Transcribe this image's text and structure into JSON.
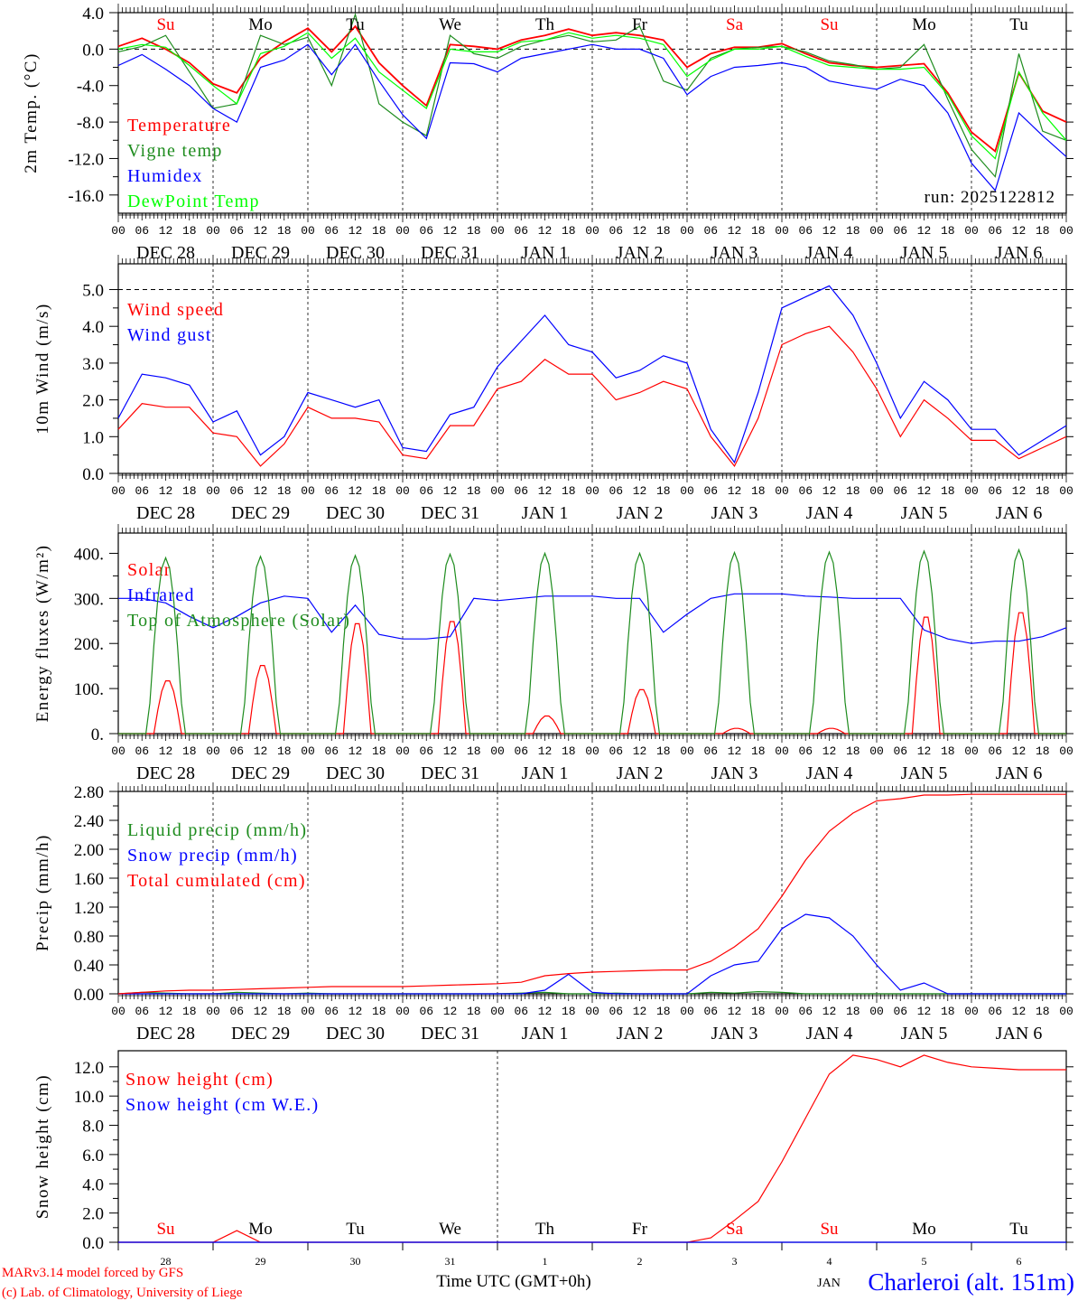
{
  "colors": {
    "red": "#ff0000",
    "dark_green": "#1e8c1e",
    "blue": "#0000ff",
    "light_green": "#00ff00",
    "black": "#000000"
  },
  "time_axis": {
    "hour_labels": [
      "00",
      "06",
      "12",
      "18"
    ],
    "day_labels": [
      "DEC 28",
      "DEC 29",
      "DEC 30",
      "DEC 31",
      "JAN  1",
      "JAN  2",
      "JAN  3",
      "JAN  4",
      "JAN  5",
      "JAN  6"
    ],
    "weekdays": [
      {
        "label": "Su",
        "color": "#ff0000"
      },
      {
        "label": "Mo",
        "color": "#000000"
      },
      {
        "label": "Tu",
        "color": "#000000"
      },
      {
        "label": "We",
        "color": "#000000"
      },
      {
        "label": "Th",
        "color": "#000000"
      },
      {
        "label": "Fr",
        "color": "#000000"
      },
      {
        "label": "Sa",
        "color": "#ff0000"
      },
      {
        "label": "Su",
        "color": "#ff0000"
      },
      {
        "label": "Mo",
        "color": "#000000"
      },
      {
        "label": "Tu",
        "color": "#000000"
      }
    ],
    "day_numbers": [
      "28",
      "29",
      "30",
      "31",
      "1",
      "2",
      "3",
      "4",
      "5",
      "6"
    ],
    "month_label": "JAN",
    "title": "Time UTC (GMT+0h)"
  },
  "run_label": "run: 2025122812",
  "footer": {
    "credit_1": "MARv3.14 model forced by GFS",
    "credit_2": "(c) Lab. of Climatology, University of Liege",
    "location": "Charleroi (alt. 151m)"
  },
  "chart_data": [
    {
      "type": "line",
      "title": "",
      "ylabel": "2m Temp. (°C)",
      "ylim": [
        -18,
        4
      ],
      "yticks": [
        4,
        0,
        -4,
        -8,
        -12,
        -16
      ],
      "ytick_labels": [
        "4.0",
        "0.0",
        "-4.0",
        "-8.0",
        "-12.0",
        "-16.0"
      ],
      "ref_line": 0,
      "x_step_hours": 6,
      "series": [
        {
          "name": "Temperature",
          "color": "#ff0000",
          "values": [
            0.3,
            1.2,
            0.0,
            -1.5,
            -3.8,
            -4.8,
            -1.0,
            0.8,
            2.3,
            -0.3,
            2.5,
            -1.5,
            -4.0,
            -6.2,
            0.5,
            0.3,
            0.0,
            1.0,
            1.5,
            2.2,
            1.5,
            1.8,
            1.5,
            1.0,
            -2.0,
            -0.5,
            0.2,
            0.2,
            0.6,
            -0.5,
            -1.5,
            -1.8,
            -2.0,
            -1.8,
            -1.6,
            -4.8,
            -9.1,
            -11.2,
            -2.6,
            -6.8,
            -8.0
          ]
        },
        {
          "name": "Vigne temp",
          "color": "#1e8c1e",
          "values": [
            -0.3,
            0.3,
            1.5,
            -2.5,
            -6.5,
            -6.0,
            1.5,
            0.5,
            1.3,
            -4.0,
            3.8,
            -6.0,
            -8.0,
            -9.5,
            1.5,
            -0.5,
            -1.0,
            0.3,
            1.0,
            1.5,
            0.8,
            1.0,
            2.5,
            -3.5,
            -4.5,
            -1.0,
            0.0,
            0.2,
            0.3,
            -0.3,
            -1.3,
            -1.7,
            -2.2,
            -2.0,
            0.5,
            -5.5,
            -11.0,
            -14.0,
            -0.5,
            -9.0,
            -10.0
          ]
        },
        {
          "name": "Humidex",
          "color": "#0000ff",
          "values": [
            -1.8,
            -0.6,
            -2.2,
            -4.0,
            -6.5,
            -8.0,
            -2.0,
            -1.2,
            0.5,
            -2.8,
            0.5,
            -3.5,
            -7.2,
            -9.8,
            -1.5,
            -1.6,
            -2.5,
            -1.0,
            -0.5,
            0.0,
            0.5,
            0.0,
            0.0,
            -1.0,
            -5.0,
            -3.0,
            -2.0,
            -1.8,
            -1.5,
            -2.0,
            -3.5,
            -4.0,
            -4.4,
            -3.3,
            -4.0,
            -7.0,
            -12.5,
            -15.5,
            -7.0,
            -9.5,
            -11.8
          ]
        },
        {
          "name": "DewPoint Temp",
          "color": "#00ff00",
          "values": [
            0.0,
            0.5,
            0.2,
            -1.8,
            -4.0,
            -6.0,
            -0.5,
            0.3,
            1.8,
            -1.0,
            1.2,
            -2.5,
            -4.5,
            -6.5,
            0.0,
            -0.3,
            -0.3,
            0.8,
            1.0,
            1.8,
            1.2,
            1.5,
            1.2,
            0.5,
            -3.0,
            -1.2,
            0.0,
            0.0,
            0.3,
            -0.8,
            -1.8,
            -2.0,
            -2.2,
            -2.2,
            -2.0,
            -5.0,
            -9.5,
            -12.0,
            -2.5,
            -7.0,
            -10.0
          ]
        }
      ]
    },
    {
      "type": "line",
      "ylabel": "10m Wind (m/s)",
      "ylim": [
        0,
        5.7
      ],
      "yticks": [
        0,
        1,
        2,
        3,
        4,
        5
      ],
      "ytick_labels": [
        "0.0",
        "1.0",
        "2.0",
        "3.0",
        "4.0",
        "5.0"
      ],
      "ref_line": 5,
      "x_step_hours": 6,
      "series": [
        {
          "name": "Wind speed",
          "color": "#ff0000",
          "values": [
            1.2,
            1.9,
            1.8,
            1.8,
            1.1,
            1.0,
            0.2,
            0.8,
            1.8,
            1.5,
            1.5,
            1.4,
            0.5,
            0.4,
            1.3,
            1.3,
            2.3,
            2.5,
            3.1,
            2.7,
            2.7,
            2.0,
            2.2,
            2.5,
            2.3,
            1.0,
            0.2,
            1.5,
            3.5,
            3.8,
            4.0,
            3.3,
            2.3,
            1.0,
            2.0,
            1.5,
            0.9,
            0.9,
            0.4,
            0.7,
            1.0
          ]
        },
        {
          "name": "Wind gust",
          "color": "#0000ff",
          "values": [
            1.5,
            2.7,
            2.6,
            2.4,
            1.4,
            1.7,
            0.5,
            1.0,
            2.2,
            2.0,
            1.8,
            2.0,
            0.7,
            0.6,
            1.6,
            1.8,
            2.9,
            3.6,
            4.3,
            3.5,
            3.3,
            2.6,
            2.8,
            3.2,
            3.0,
            1.2,
            0.3,
            2.2,
            4.5,
            4.8,
            5.1,
            4.3,
            3.0,
            1.5,
            2.5,
            2.0,
            1.2,
            1.2,
            0.5,
            0.9,
            1.3
          ]
        }
      ]
    },
    {
      "type": "line",
      "ylabel": "Energy fluxes (W/m²)",
      "ylim": [
        0,
        445
      ],
      "yticks": [
        0,
        100,
        200,
        300,
        400
      ],
      "ytick_labels": [
        "0.",
        "100.",
        "200.",
        "300.",
        "400."
      ],
      "x_step_hours": 6,
      "series": [
        {
          "name": "Solar",
          "color": "#ff0000",
          "daily_peak": [
            120,
            155,
            250,
            255,
            40,
            100,
            12,
            12,
            265,
            275
          ]
        },
        {
          "name": "Infrared",
          "color": "#0000ff",
          "values": [
            300,
            300,
            290,
            260,
            235,
            260,
            290,
            305,
            300,
            225,
            285,
            220,
            210,
            210,
            215,
            300,
            295,
            300,
            305,
            305,
            305,
            300,
            300,
            225,
            265,
            300,
            310,
            310,
            310,
            305,
            303,
            300,
            300,
            300,
            230,
            210,
            200,
            205,
            205,
            215,
            235
          ]
        },
        {
          "name": "Top of Atmosphere (Solar)",
          "color": "#1e8c1e",
          "daily_peak": [
            390,
            393,
            395,
            398,
            400,
            400,
            402,
            403,
            405,
            408
          ]
        }
      ]
    },
    {
      "type": "line",
      "ylabel": "Precip (mm/h)",
      "ylim": [
        0,
        2.8
      ],
      "yticks": [
        0,
        0.4,
        0.8,
        1.2,
        1.6,
        2.0,
        2.4,
        2.8
      ],
      "ytick_labels": [
        "0.00",
        "0.40",
        "0.80",
        "1.20",
        "1.60",
        "2.00",
        "2.40",
        "2.80"
      ],
      "x_step_hours": 6,
      "series": [
        {
          "name": "Liquid precip (mm/h)",
          "color": "#1e8c1e",
          "values": [
            0,
            0.02,
            0.01,
            0,
            0,
            0.02,
            0.01,
            0,
            0.01,
            0,
            0,
            0,
            0,
            0,
            0,
            0,
            0,
            0.01,
            0.02,
            0,
            0,
            0.01,
            0,
            0,
            0,
            0.02,
            0.01,
            0.03,
            0.02,
            0,
            0,
            0,
            0,
            0,
            0,
            0,
            0,
            0,
            0,
            0,
            0
          ]
        },
        {
          "name": "Snow precip (mm/h)",
          "color": "#0000ff",
          "values": [
            0,
            0,
            0,
            0,
            0,
            0,
            0,
            0,
            0,
            0,
            0,
            0,
            0,
            0,
            0,
            0,
            0,
            0,
            0.05,
            0.27,
            0.02,
            0,
            0,
            0,
            0,
            0.25,
            0.4,
            0.45,
            0.9,
            1.1,
            1.05,
            0.8,
            0.4,
            0.05,
            0.15,
            0,
            0,
            0,
            0,
            0,
            0
          ]
        },
        {
          "name": "Total cumulated (cm)",
          "color": "#ff0000",
          "values": [
            0,
            0.02,
            0.04,
            0.05,
            0.05,
            0.06,
            0.07,
            0.08,
            0.09,
            0.1,
            0.1,
            0.1,
            0.1,
            0.11,
            0.12,
            0.13,
            0.14,
            0.16,
            0.25,
            0.28,
            0.3,
            0.31,
            0.32,
            0.33,
            0.33,
            0.45,
            0.65,
            0.9,
            1.35,
            1.85,
            2.25,
            2.5,
            2.67,
            2.7,
            2.75,
            2.75,
            2.76,
            2.76,
            2.76,
            2.76,
            2.76
          ]
        }
      ]
    },
    {
      "type": "line",
      "ylabel": "Snow height (cm)",
      "ylim": [
        0,
        13.1
      ],
      "yticks": [
        0,
        2,
        4,
        6,
        8,
        10,
        12
      ],
      "ytick_labels": [
        "0.0",
        "2.0",
        "4.0",
        "6.0",
        "8.0",
        "10.0",
        "12.0"
      ],
      "x_step_hours": 6,
      "series": [
        {
          "name": "Snow height (cm)",
          "color": "#ff0000",
          "values": [
            0,
            0,
            0,
            0,
            0,
            0.8,
            0,
            0,
            0,
            0,
            0,
            0,
            0,
            0,
            0,
            0,
            0,
            0,
            0,
            0,
            0,
            0,
            0,
            0,
            0,
            0.3,
            1.5,
            2.8,
            5.5,
            8.5,
            11.5,
            12.8,
            12.5,
            12.0,
            12.8,
            12.3,
            12.0,
            11.9,
            11.8,
            11.8,
            11.8
          ]
        },
        {
          "name": "Snow height (cm W.E.)",
          "color": "#0000ff",
          "values": [
            0,
            0,
            0,
            0,
            0,
            0,
            0,
            0,
            0,
            0,
            0,
            0,
            0,
            0,
            0,
            0,
            0,
            0,
            0,
            0,
            0,
            0,
            0,
            0,
            0,
            0,
            0,
            0,
            0,
            0,
            0,
            0,
            0,
            0,
            0,
            0,
            0,
            0,
            0,
            0,
            0
          ]
        }
      ]
    }
  ]
}
